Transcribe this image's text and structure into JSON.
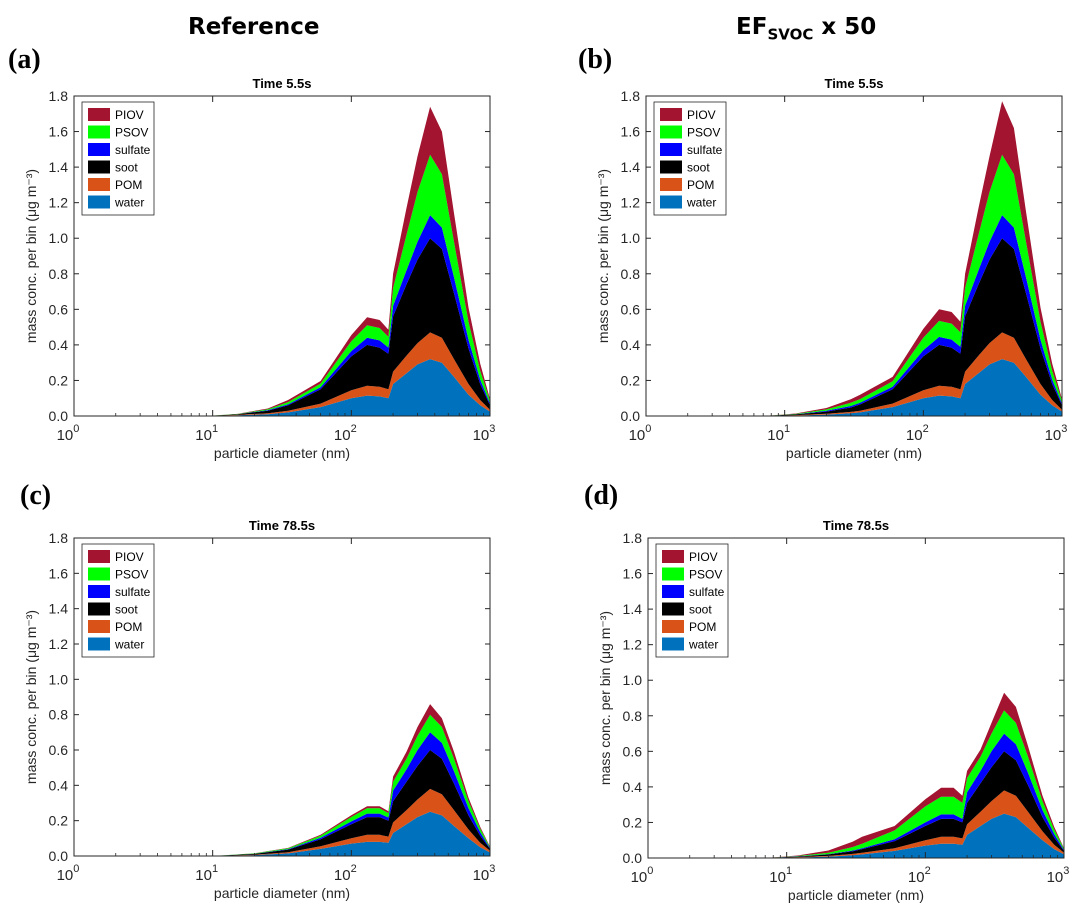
{
  "headers": {
    "left": "Reference",
    "right_main": "EF",
    "right_sub": "SVOC",
    "right_suffix": " x 50"
  },
  "panel_labels": [
    "(a)",
    "(b)",
    "(c)",
    "(d)"
  ],
  "colors": {
    "PIOV": "#a2142f",
    "PSOV": "#00ff00",
    "sulfate": "#0000ff",
    "soot": "#000000",
    "POM": "#d95319",
    "water": "#0072bd"
  },
  "chart_data": [
    {
      "type": "area",
      "title": "Time 5.5s",
      "xlabel": "particle diameter (nm)",
      "ylabel": "mass conc. per bin (μg m⁻³)",
      "xscale": "log",
      "xlim": [
        1,
        1000
      ],
      "ylim": [
        0,
        1.8
      ],
      "yticks": [
        "0.0",
        "0.2",
        "0.4",
        "0.6",
        "0.8",
        "1.0",
        "1.2",
        "1.4",
        "1.6",
        "1.8"
      ],
      "xticks": [
        {
          "base": "10",
          "exp": "0"
        },
        {
          "base": "10",
          "exp": "1"
        },
        {
          "base": "10",
          "exp": "2"
        },
        {
          "base": "10",
          "exp": "3"
        }
      ],
      "legend": [
        "PIOV",
        "PSOV",
        "sulfate",
        "soot",
        "POM",
        "water"
      ],
      "legend_position": "top-left",
      "x": [
        9,
        15,
        25,
        35,
        60,
        100,
        130,
        160,
        185,
        200,
        250,
        300,
        370,
        450,
        550,
        700,
        850,
        1000
      ],
      "series": [
        {
          "name": "water",
          "values": [
            0,
            0.004,
            0.01,
            0.02,
            0.05,
            0.1,
            0.115,
            0.11,
            0.1,
            0.18,
            0.24,
            0.29,
            0.32,
            0.3,
            0.22,
            0.12,
            0.06,
            0.025
          ]
        },
        {
          "name": "POM",
          "values": [
            0,
            0.002,
            0.006,
            0.01,
            0.02,
            0.045,
            0.055,
            0.055,
            0.05,
            0.07,
            0.1,
            0.12,
            0.15,
            0.14,
            0.1,
            0.06,
            0.03,
            0.01
          ]
        },
        {
          "name": "soot",
          "values": [
            0,
            0.004,
            0.014,
            0.03,
            0.08,
            0.19,
            0.23,
            0.22,
            0.2,
            0.31,
            0.4,
            0.47,
            0.53,
            0.5,
            0.37,
            0.2,
            0.09,
            0.025
          ]
        },
        {
          "name": "sulfate",
          "values": [
            0,
            0,
            0.003,
            0.006,
            0.012,
            0.03,
            0.04,
            0.04,
            0.035,
            0.06,
            0.08,
            0.1,
            0.13,
            0.12,
            0.09,
            0.05,
            0.025,
            0.01
          ]
        },
        {
          "name": "PSOV",
          "values": [
            0,
            0.001,
            0.005,
            0.012,
            0.02,
            0.055,
            0.07,
            0.07,
            0.06,
            0.1,
            0.2,
            0.28,
            0.34,
            0.3,
            0.2,
            0.1,
            0.05,
            0.015
          ]
        },
        {
          "name": "PIOV",
          "values": [
            0,
            0.001,
            0.004,
            0.012,
            0.015,
            0.035,
            0.045,
            0.045,
            0.04,
            0.08,
            0.15,
            0.2,
            0.27,
            0.24,
            0.16,
            0.08,
            0.04,
            0.01
          ]
        }
      ]
    },
    {
      "type": "area",
      "title": "Time 5.5s",
      "xlabel": "particle diameter (nm)",
      "ylabel": "mass conc. per bin (μg m⁻³)",
      "xscale": "log",
      "xlim": [
        1,
        1000
      ],
      "ylim": [
        0,
        1.8
      ],
      "yticks": [
        "0.0",
        "0.2",
        "0.4",
        "0.6",
        "0.8",
        "1.0",
        "1.2",
        "1.4",
        "1.6",
        "1.8"
      ],
      "xticks": [
        {
          "base": "10",
          "exp": "0"
        },
        {
          "base": "10",
          "exp": "1"
        },
        {
          "base": "10",
          "exp": "2"
        },
        {
          "base": "10",
          "exp": "3"
        }
      ],
      "legend": [
        "PIOV",
        "PSOV",
        "sulfate",
        "soot",
        "POM",
        "water"
      ],
      "legend_position": "top-left",
      "x": [
        7,
        12,
        20,
        30,
        35,
        60,
        100,
        130,
        160,
        185,
        200,
        250,
        300,
        370,
        450,
        550,
        700,
        850,
        1000
      ],
      "series": [
        {
          "name": "water",
          "values": [
            0,
            0.003,
            0.008,
            0.015,
            0.02,
            0.05,
            0.1,
            0.115,
            0.11,
            0.1,
            0.18,
            0.24,
            0.29,
            0.32,
            0.3,
            0.22,
            0.12,
            0.06,
            0.025
          ]
        },
        {
          "name": "POM",
          "values": [
            0,
            0.002,
            0.005,
            0.008,
            0.01,
            0.02,
            0.045,
            0.055,
            0.055,
            0.05,
            0.07,
            0.1,
            0.12,
            0.15,
            0.14,
            0.1,
            0.06,
            0.03,
            0.01
          ]
        },
        {
          "name": "soot",
          "values": [
            0,
            0.004,
            0.012,
            0.025,
            0.035,
            0.08,
            0.19,
            0.23,
            0.22,
            0.2,
            0.31,
            0.4,
            0.47,
            0.53,
            0.5,
            0.37,
            0.2,
            0.09,
            0.025
          ]
        },
        {
          "name": "sulfate",
          "values": [
            0,
            0.001,
            0.004,
            0.008,
            0.01,
            0.015,
            0.035,
            0.045,
            0.045,
            0.04,
            0.06,
            0.08,
            0.1,
            0.13,
            0.12,
            0.09,
            0.05,
            0.025,
            0.01
          ]
        },
        {
          "name": "PSOV",
          "values": [
            0,
            0.002,
            0.008,
            0.018,
            0.02,
            0.03,
            0.07,
            0.09,
            0.09,
            0.08,
            0.1,
            0.2,
            0.28,
            0.34,
            0.3,
            0.2,
            0.1,
            0.05,
            0.015
          ]
        },
        {
          "name": "PIOV",
          "values": [
            0,
            0.002,
            0.008,
            0.02,
            0.025,
            0.025,
            0.05,
            0.065,
            0.065,
            0.06,
            0.08,
            0.15,
            0.2,
            0.3,
            0.26,
            0.17,
            0.08,
            0.04,
            0.01
          ]
        }
      ]
    },
    {
      "type": "area",
      "title": "Time 78.5s",
      "xlabel": "particle diameter (nm)",
      "ylabel": "mass conc. per bin (μg m⁻³)",
      "xscale": "log",
      "xlim": [
        1,
        1000
      ],
      "ylim": [
        0,
        1.8
      ],
      "yticks": [
        "0.0",
        "0.2",
        "0.4",
        "0.6",
        "0.8",
        "1.0",
        "1.2",
        "1.4",
        "1.6",
        "1.8"
      ],
      "xticks": [
        {
          "base": "10",
          "exp": "0"
        },
        {
          "base": "10",
          "exp": "1"
        },
        {
          "base": "10",
          "exp": "2"
        },
        {
          "base": "10",
          "exp": "3"
        }
      ],
      "legend": [
        "PIOV",
        "PSOV",
        "sulfate",
        "soot",
        "POM",
        "water"
      ],
      "legend_position": "top-left",
      "x": [
        10,
        20,
        35,
        60,
        100,
        130,
        160,
        185,
        200,
        250,
        300,
        370,
        450,
        550,
        700,
        850,
        1000
      ],
      "series": [
        {
          "name": "water",
          "values": [
            0,
            0.005,
            0.015,
            0.04,
            0.07,
            0.08,
            0.08,
            0.075,
            0.13,
            0.18,
            0.22,
            0.25,
            0.23,
            0.17,
            0.1,
            0.05,
            0.02
          ]
        },
        {
          "name": "POM",
          "values": [
            0,
            0.002,
            0.006,
            0.015,
            0.03,
            0.04,
            0.04,
            0.035,
            0.06,
            0.08,
            0.1,
            0.13,
            0.12,
            0.09,
            0.05,
            0.025,
            0.01
          ]
        },
        {
          "name": "soot",
          "values": [
            0,
            0.005,
            0.015,
            0.04,
            0.08,
            0.1,
            0.1,
            0.09,
            0.12,
            0.16,
            0.19,
            0.22,
            0.2,
            0.15,
            0.08,
            0.04,
            0.01
          ]
        },
        {
          "name": "sulfate",
          "values": [
            0,
            0.001,
            0.003,
            0.008,
            0.016,
            0.02,
            0.02,
            0.018,
            0.06,
            0.07,
            0.09,
            0.1,
            0.09,
            0.07,
            0.04,
            0.02,
            0.005
          ]
        },
        {
          "name": "PSOV",
          "values": [
            0,
            0.002,
            0.005,
            0.012,
            0.025,
            0.03,
            0.03,
            0.025,
            0.05,
            0.06,
            0.08,
            0.1,
            0.09,
            0.07,
            0.04,
            0.02,
            0.005
          ]
        },
        {
          "name": "PIOV",
          "values": [
            0,
            0.001,
            0.002,
            0.005,
            0.01,
            0.012,
            0.012,
            0.01,
            0.03,
            0.04,
            0.05,
            0.06,
            0.05,
            0.04,
            0.02,
            0.01,
            0.003
          ]
        }
      ]
    },
    {
      "type": "area",
      "title": "Time 78.5s",
      "xlabel": "particle diameter (nm)",
      "ylabel": "mass conc. per bin (μg m⁻³)",
      "xscale": "log",
      "xlim": [
        1,
        1000
      ],
      "ylim": [
        0,
        1.8
      ],
      "yticks": [
        "0.0",
        "0.2",
        "0.4",
        "0.6",
        "0.8",
        "1.0",
        "1.2",
        "1.4",
        "1.6",
        "1.8"
      ],
      "xticks": [
        {
          "base": "10",
          "exp": "0"
        },
        {
          "base": "10",
          "exp": "1"
        },
        {
          "base": "10",
          "exp": "2"
        },
        {
          "base": "10",
          "exp": "3"
        }
      ],
      "legend": [
        "PIOV",
        "PSOV",
        "sulfate",
        "soot",
        "POM",
        "water"
      ],
      "legend_position": "top-left",
      "x": [
        7,
        12,
        20,
        30,
        35,
        60,
        100,
        130,
        160,
        185,
        200,
        250,
        300,
        370,
        450,
        550,
        700,
        850,
        1000
      ],
      "series": [
        {
          "name": "water",
          "values": [
            0,
            0.003,
            0.008,
            0.015,
            0.02,
            0.04,
            0.07,
            0.08,
            0.08,
            0.075,
            0.13,
            0.18,
            0.22,
            0.25,
            0.23,
            0.17,
            0.1,
            0.05,
            0.02
          ]
        },
        {
          "name": "POM",
          "values": [
            0,
            0.002,
            0.004,
            0.008,
            0.01,
            0.015,
            0.03,
            0.04,
            0.04,
            0.035,
            0.06,
            0.08,
            0.1,
            0.13,
            0.12,
            0.09,
            0.05,
            0.025,
            0.01
          ]
        },
        {
          "name": "soot",
          "values": [
            0,
            0.003,
            0.008,
            0.015,
            0.02,
            0.04,
            0.08,
            0.1,
            0.1,
            0.09,
            0.12,
            0.16,
            0.19,
            0.22,
            0.2,
            0.15,
            0.08,
            0.04,
            0.01
          ]
        },
        {
          "name": "sulfate",
          "values": [
            0,
            0.001,
            0.002,
            0.004,
            0.005,
            0.01,
            0.02,
            0.025,
            0.025,
            0.02,
            0.06,
            0.07,
            0.09,
            0.1,
            0.09,
            0.07,
            0.04,
            0.02,
            0.005
          ]
        },
        {
          "name": "PSOV",
          "values": [
            0,
            0.002,
            0.008,
            0.02,
            0.025,
            0.05,
            0.09,
            0.1,
            0.1,
            0.09,
            0.08,
            0.08,
            0.1,
            0.13,
            0.12,
            0.09,
            0.05,
            0.025,
            0.006
          ]
        },
        {
          "name": "PIOV",
          "values": [
            0,
            0.003,
            0.012,
            0.03,
            0.04,
            0.025,
            0.04,
            0.05,
            0.05,
            0.04,
            0.04,
            0.04,
            0.06,
            0.1,
            0.09,
            0.06,
            0.03,
            0.015,
            0.004
          ]
        }
      ]
    }
  ]
}
